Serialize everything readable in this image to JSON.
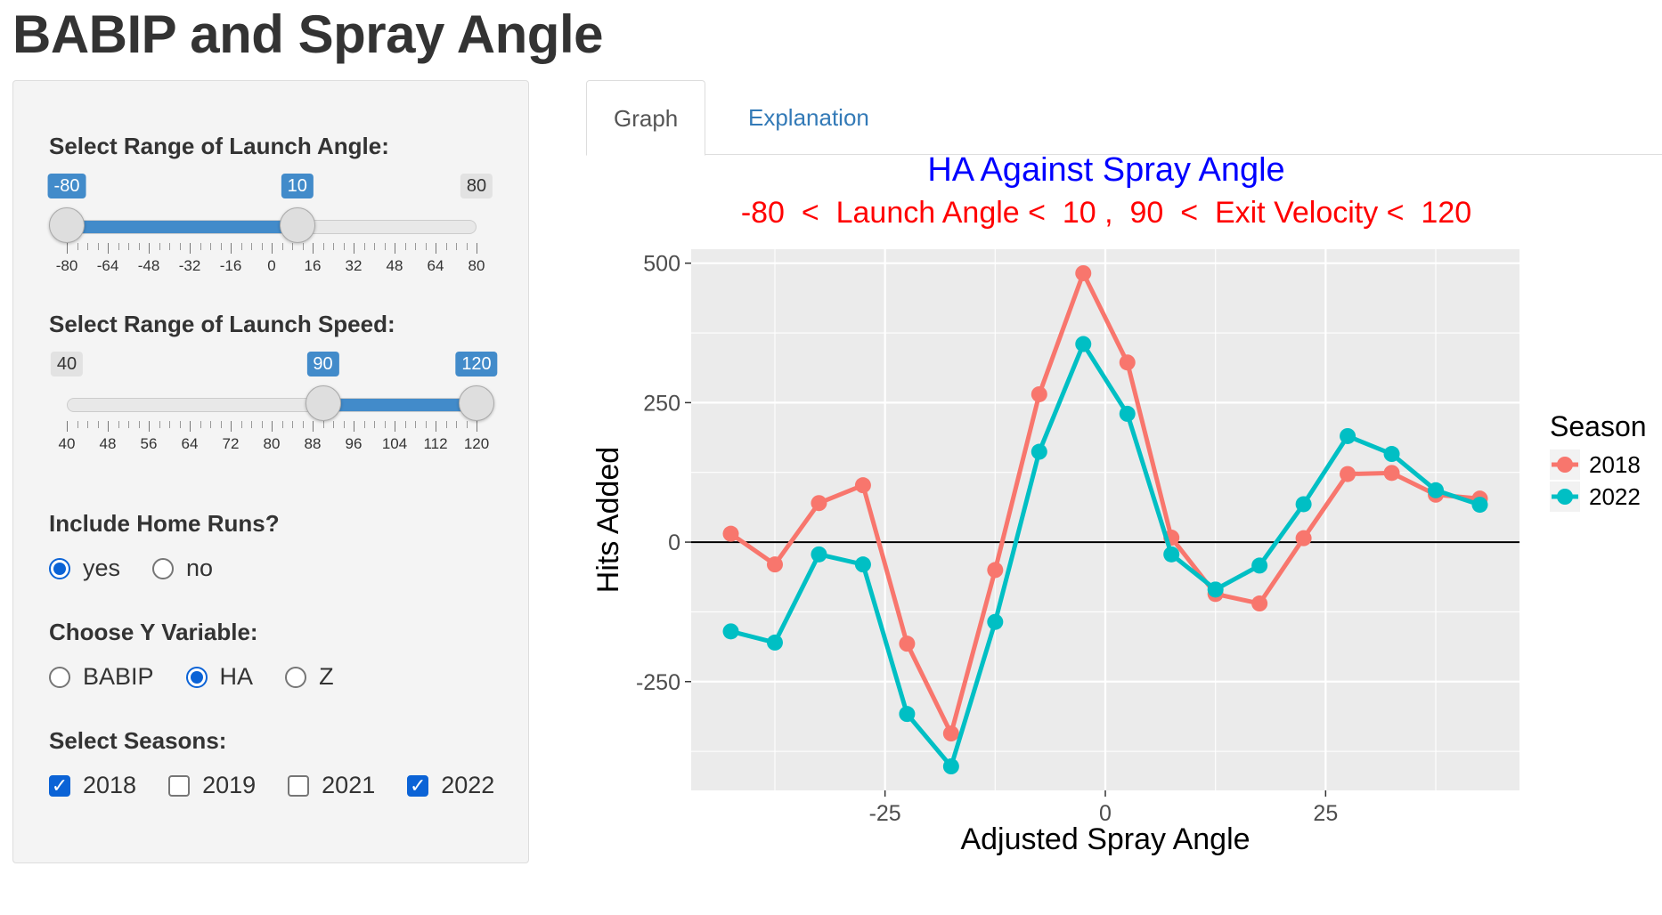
{
  "page": {
    "title": "BABIP and Spray Angle"
  },
  "sidebar": {
    "launch_angle": {
      "label": "Select Range of Launch Angle:",
      "min": -80,
      "max": 80,
      "from": -80,
      "to": 10,
      "min_label": "-80",
      "max_label": "80",
      "from_label": "-80",
      "to_label": "10",
      "tick_labels": [
        "-80",
        "-64",
        "-48",
        "-32",
        "-16",
        "0",
        "16",
        "32",
        "48",
        "64",
        "80"
      ]
    },
    "launch_speed": {
      "label": "Select Range of Launch Speed:",
      "min": 40,
      "max": 120,
      "from": 90,
      "to": 120,
      "min_label": "40",
      "max_label": "120",
      "from_label": "90",
      "to_label": "120",
      "tick_labels": [
        "40",
        "48",
        "56",
        "64",
        "72",
        "80",
        "88",
        "96",
        "104",
        "112",
        "120"
      ]
    },
    "home_runs": {
      "label": "Include Home Runs?",
      "options": [
        {
          "label": "yes",
          "selected": true
        },
        {
          "label": "no",
          "selected": false
        }
      ]
    },
    "y_variable": {
      "label": "Choose Y Variable:",
      "options": [
        {
          "label": "BABIP",
          "selected": false
        },
        {
          "label": "HA",
          "selected": true
        },
        {
          "label": "Z",
          "selected": false
        }
      ]
    },
    "seasons": {
      "label": "Select Seasons:",
      "options": [
        {
          "label": "2018",
          "checked": true
        },
        {
          "label": "2019",
          "checked": false
        },
        {
          "label": "2021",
          "checked": false
        },
        {
          "label": "2022",
          "checked": true
        }
      ]
    }
  },
  "tabs": [
    {
      "label": "Graph",
      "active": true
    },
    {
      "label": "Explanation",
      "active": false
    }
  ],
  "chart_data": {
    "type": "line",
    "title": "HA Against Spray Angle",
    "subtitle": "-80  <  Launch Angle <  10 ,  90  <  Exit Velocity <  120",
    "xlabel": "Adjusted Spray Angle",
    "ylabel": "Hits Added",
    "xlim": [
      -47,
      47
    ],
    "ylim": [
      -445,
      525
    ],
    "x_ticks": [
      -25,
      0,
      25
    ],
    "y_ticks": [
      -250,
      0,
      250,
      500
    ],
    "legend_title": "Season",
    "legend_position": "right",
    "grid": true,
    "x": [
      -42.5,
      -37.5,
      -32.5,
      -27.5,
      -22.5,
      -17.5,
      -12.5,
      -7.5,
      -2.5,
      2.5,
      7.5,
      12.5,
      17.5,
      22.5,
      27.5,
      32.5,
      37.5,
      42.5
    ],
    "series": [
      {
        "name": "2018",
        "color": "#f8766d",
        "values": [
          15,
          -40,
          70,
          102,
          -182,
          -343,
          -50,
          265,
          482,
          322,
          8,
          -93,
          -110,
          7,
          122,
          124,
          85,
          78
        ]
      },
      {
        "name": "2022",
        "color": "#00bfc4",
        "values": [
          -160,
          -180,
          -22,
          -40,
          -308,
          -402,
          -143,
          162,
          355,
          230,
          -22,
          -85,
          -42,
          68,
          190,
          158,
          93,
          67
        ]
      }
    ]
  }
}
